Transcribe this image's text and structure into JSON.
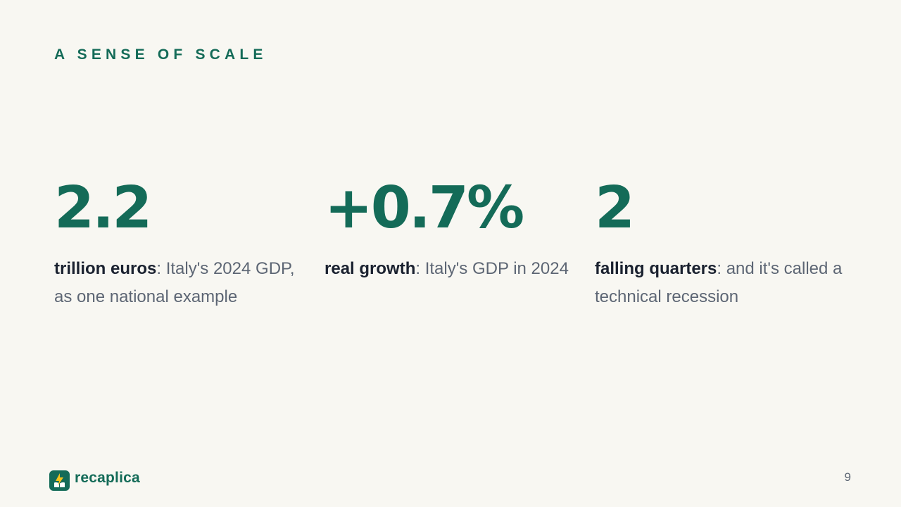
{
  "slide": {
    "eyebrow": "A SENSE OF SCALE",
    "page_number": "9"
  },
  "stats": [
    {
      "value": "2.2",
      "label": "trillion euros",
      "description": ": Italy's 2024 GDP, as one national example"
    },
    {
      "value": "+0.7%",
      "label": "real growth",
      "description": ": Italy's GDP in 2024"
    },
    {
      "value": "2",
      "label": "falling quarters",
      "description": ": and it's called a technical recession"
    }
  ],
  "brand": {
    "name": "recaplica",
    "icon": "lightning-book-icon",
    "accent": "#146b58",
    "bolt": "#f4c21d"
  }
}
